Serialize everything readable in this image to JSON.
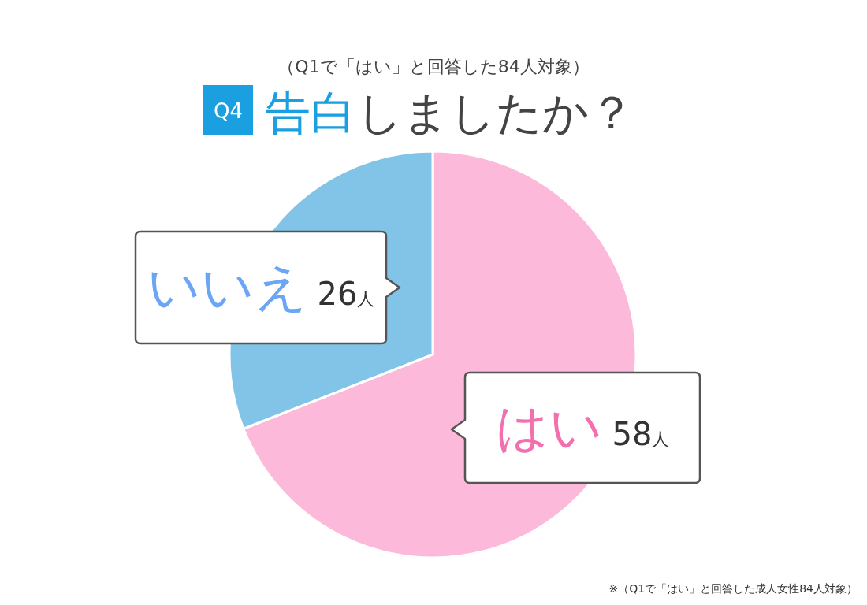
{
  "chart_data": {
    "type": "pie",
    "title": "告白しましたか？",
    "subtitle": "（Q1で「はい」と回答した84人対象）",
    "categories": [
      "はい",
      "いいえ"
    ],
    "values": [
      58,
      26
    ],
    "colors": [
      "#fcb9d9",
      "#82c4e8"
    ],
    "value_labels": [
      "58人",
      "26人"
    ],
    "annotations": [
      "Q4",
      "※（Q1で「はい」と回答した成人女性84人対象）"
    ]
  }
}
